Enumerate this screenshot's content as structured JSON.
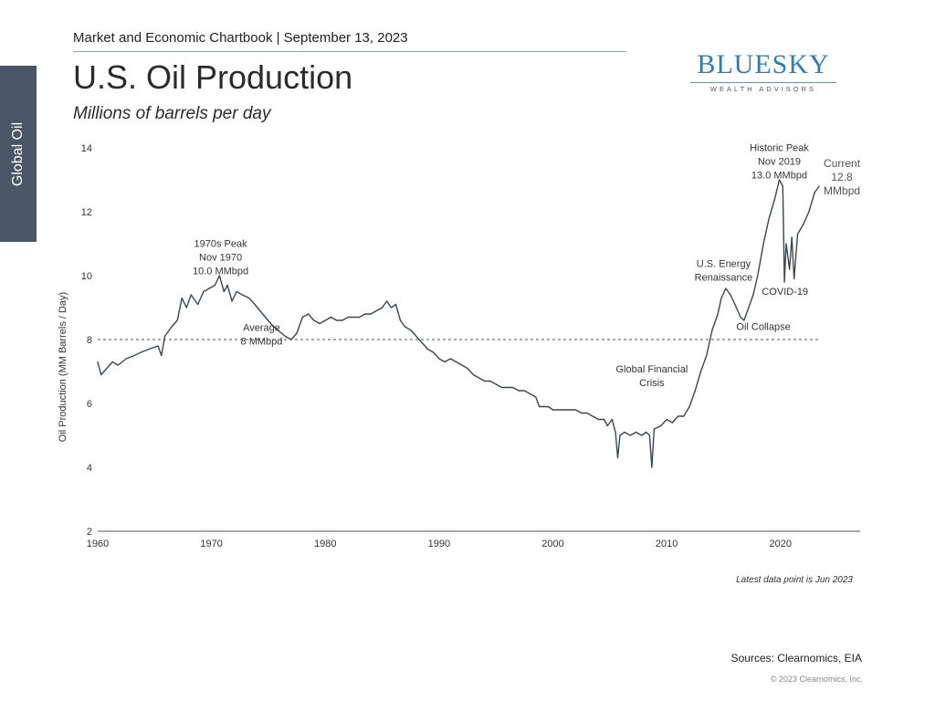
{
  "header": {
    "chartbook": "Market and Economic Chartbook | September 13, 2023",
    "title": "U.S. Oil Production",
    "subtitle": "Millions of barrels per day"
  },
  "side_tab": {
    "label": "Global Oil"
  },
  "logo": {
    "main": "BLUESKY",
    "sub": "WEALTH ADVISORS"
  },
  "footer": {
    "latest": "Latest data point is Jun 2023",
    "sources": "Sources: Clearnomics, EIA",
    "copyright": "© 2023 Clearnomics, Inc."
  },
  "colors": {
    "line": "#3b4652",
    "side_tab": "#4a5566",
    "logo": "#2a7fb8",
    "axis": "#555555"
  },
  "chart_data": {
    "type": "line",
    "title": "U.S. Oil Production",
    "subtitle": "Millions of barrels per day",
    "xlabel": "",
    "ylabel": "Oil Production (MM Barrels / Day)",
    "xlim": [
      1960,
      2027
    ],
    "ylim": [
      2,
      14
    ],
    "xticks": [
      1960,
      1970,
      1980,
      1990,
      2000,
      2010,
      2020
    ],
    "yticks": [
      2,
      4,
      6,
      8,
      10,
      12,
      14
    ],
    "grid": false,
    "reference_line": {
      "y": 8,
      "style": "dashed"
    },
    "series": [
      {
        "points": [
          [
            1960.0,
            7.3
          ],
          [
            1960.3,
            6.9
          ],
          [
            1960.8,
            7.1
          ],
          [
            1961.3,
            7.3
          ],
          [
            1961.8,
            7.2
          ],
          [
            1962.5,
            7.4
          ],
          [
            1963.2,
            7.5
          ],
          [
            1963.8,
            7.6
          ],
          [
            1964.5,
            7.7
          ],
          [
            1965.3,
            7.8
          ],
          [
            1965.6,
            7.5
          ],
          [
            1965.9,
            8.1
          ],
          [
            1966.5,
            8.4
          ],
          [
            1967.0,
            8.6
          ],
          [
            1967.4,
            9.3
          ],
          [
            1967.8,
            9.0
          ],
          [
            1968.2,
            9.4
          ],
          [
            1968.8,
            9.1
          ],
          [
            1969.3,
            9.5
          ],
          [
            1969.8,
            9.6
          ],
          [
            1970.3,
            9.7
          ],
          [
            1970.7,
            10.0
          ],
          [
            1971.1,
            9.5
          ],
          [
            1971.4,
            9.7
          ],
          [
            1971.8,
            9.2
          ],
          [
            1972.2,
            9.5
          ],
          [
            1972.7,
            9.4
          ],
          [
            1973.3,
            9.3
          ],
          [
            1973.8,
            9.1
          ],
          [
            1974.5,
            8.8
          ],
          [
            1975.2,
            8.5
          ],
          [
            1975.8,
            8.3
          ],
          [
            1976.5,
            8.1
          ],
          [
            1977.0,
            8.0
          ],
          [
            1977.5,
            8.2
          ],
          [
            1978.0,
            8.7
          ],
          [
            1978.5,
            8.8
          ],
          [
            1979.0,
            8.6
          ],
          [
            1979.5,
            8.5
          ],
          [
            1980.0,
            8.6
          ],
          [
            1980.5,
            8.7
          ],
          [
            1981.0,
            8.6
          ],
          [
            1981.5,
            8.6
          ],
          [
            1982.0,
            8.7
          ],
          [
            1982.5,
            8.7
          ],
          [
            1983.0,
            8.7
          ],
          [
            1983.5,
            8.8
          ],
          [
            1984.0,
            8.8
          ],
          [
            1984.5,
            8.9
          ],
          [
            1985.0,
            9.0
          ],
          [
            1985.4,
            9.2
          ],
          [
            1985.8,
            9.0
          ],
          [
            1986.2,
            9.1
          ],
          [
            1986.6,
            8.6
          ],
          [
            1987.0,
            8.4
          ],
          [
            1987.5,
            8.3
          ],
          [
            1988.0,
            8.1
          ],
          [
            1988.5,
            7.9
          ],
          [
            1989.0,
            7.7
          ],
          [
            1989.5,
            7.6
          ],
          [
            1990.0,
            7.4
          ],
          [
            1990.5,
            7.3
          ],
          [
            1991.0,
            7.4
          ],
          [
            1991.5,
            7.3
          ],
          [
            1992.0,
            7.2
          ],
          [
            1992.5,
            7.1
          ],
          [
            1993.0,
            6.9
          ],
          [
            1993.5,
            6.8
          ],
          [
            1994.0,
            6.7
          ],
          [
            1994.5,
            6.7
          ],
          [
            1995.0,
            6.6
          ],
          [
            1995.5,
            6.5
          ],
          [
            1996.0,
            6.5
          ],
          [
            1996.5,
            6.5
          ],
          [
            1997.0,
            6.4
          ],
          [
            1997.5,
            6.4
          ],
          [
            1998.0,
            6.3
          ],
          [
            1998.5,
            6.2
          ],
          [
            1998.8,
            5.9
          ],
          [
            1999.2,
            5.9
          ],
          [
            1999.6,
            5.9
          ],
          [
            2000.0,
            5.8
          ],
          [
            2000.5,
            5.8
          ],
          [
            2001.0,
            5.8
          ],
          [
            2001.5,
            5.8
          ],
          [
            2002.0,
            5.8
          ],
          [
            2002.5,
            5.7
          ],
          [
            2003.0,
            5.7
          ],
          [
            2003.5,
            5.6
          ],
          [
            2004.0,
            5.5
          ],
          [
            2004.5,
            5.5
          ],
          [
            2004.8,
            5.3
          ],
          [
            2005.2,
            5.5
          ],
          [
            2005.5,
            5.1
          ],
          [
            2005.7,
            4.3
          ],
          [
            2005.9,
            5.0
          ],
          [
            2006.3,
            5.1
          ],
          [
            2006.8,
            5.0
          ],
          [
            2007.3,
            5.1
          ],
          [
            2007.8,
            5.0
          ],
          [
            2008.2,
            5.1
          ],
          [
            2008.5,
            5.0
          ],
          [
            2008.7,
            4.0
          ],
          [
            2008.9,
            5.2
          ],
          [
            2009.5,
            5.3
          ],
          [
            2010.0,
            5.5
          ],
          [
            2010.5,
            5.4
          ],
          [
            2011.0,
            5.6
          ],
          [
            2011.5,
            5.6
          ],
          [
            2012.0,
            5.9
          ],
          [
            2012.5,
            6.4
          ],
          [
            2013.0,
            7.0
          ],
          [
            2013.5,
            7.5
          ],
          [
            2014.0,
            8.3
          ],
          [
            2014.5,
            8.8
          ],
          [
            2014.8,
            9.3
          ],
          [
            2015.2,
            9.6
          ],
          [
            2015.6,
            9.4
          ],
          [
            2016.0,
            9.1
          ],
          [
            2016.5,
            8.7
          ],
          [
            2016.8,
            8.6
          ],
          [
            2017.2,
            9.0
          ],
          [
            2017.6,
            9.4
          ],
          [
            2018.0,
            10.0
          ],
          [
            2018.5,
            11.0
          ],
          [
            2019.0,
            11.8
          ],
          [
            2019.5,
            12.4
          ],
          [
            2019.9,
            13.0
          ],
          [
            2020.2,
            12.8
          ],
          [
            2020.35,
            9.8
          ],
          [
            2020.5,
            11.0
          ],
          [
            2020.8,
            10.2
          ],
          [
            2021.0,
            11.2
          ],
          [
            2021.2,
            9.9
          ],
          [
            2021.5,
            11.3
          ],
          [
            2022.0,
            11.6
          ],
          [
            2022.5,
            12.0
          ],
          [
            2023.0,
            12.6
          ],
          [
            2023.4,
            12.8
          ]
        ]
      }
    ],
    "annotations": [
      {
        "text": [
          "1970s Peak",
          "Nov 1970",
          "10.0 MMbpd"
        ],
        "x": 1970.8,
        "y": 10.05
      },
      {
        "text": [
          "Average",
          "8 MMbpd"
        ],
        "x": 1974.4,
        "y": 7.85
      },
      {
        "text": [
          "Global Financial",
          "Crisis"
        ],
        "x": 2008.7,
        "y": 6.55
      },
      {
        "text": [
          "U.S. Energy",
          "Renaissance"
        ],
        "x": 2015.0,
        "y": 9.85
      },
      {
        "text": [
          "Oil Collapse"
        ],
        "x": 2018.5,
        "y": 8.3
      },
      {
        "text": [
          "COVID-19"
        ],
        "x": 2020.4,
        "y": 9.4
      },
      {
        "text": [
          "Historic Peak",
          "Nov 2019",
          "13.0 MMbpd"
        ],
        "x": 2019.9,
        "y": 13.05
      },
      {
        "text": [
          "Current",
          "12.8",
          "MMbpd"
        ],
        "x": 2025.4,
        "y": 12.55
      }
    ]
  }
}
